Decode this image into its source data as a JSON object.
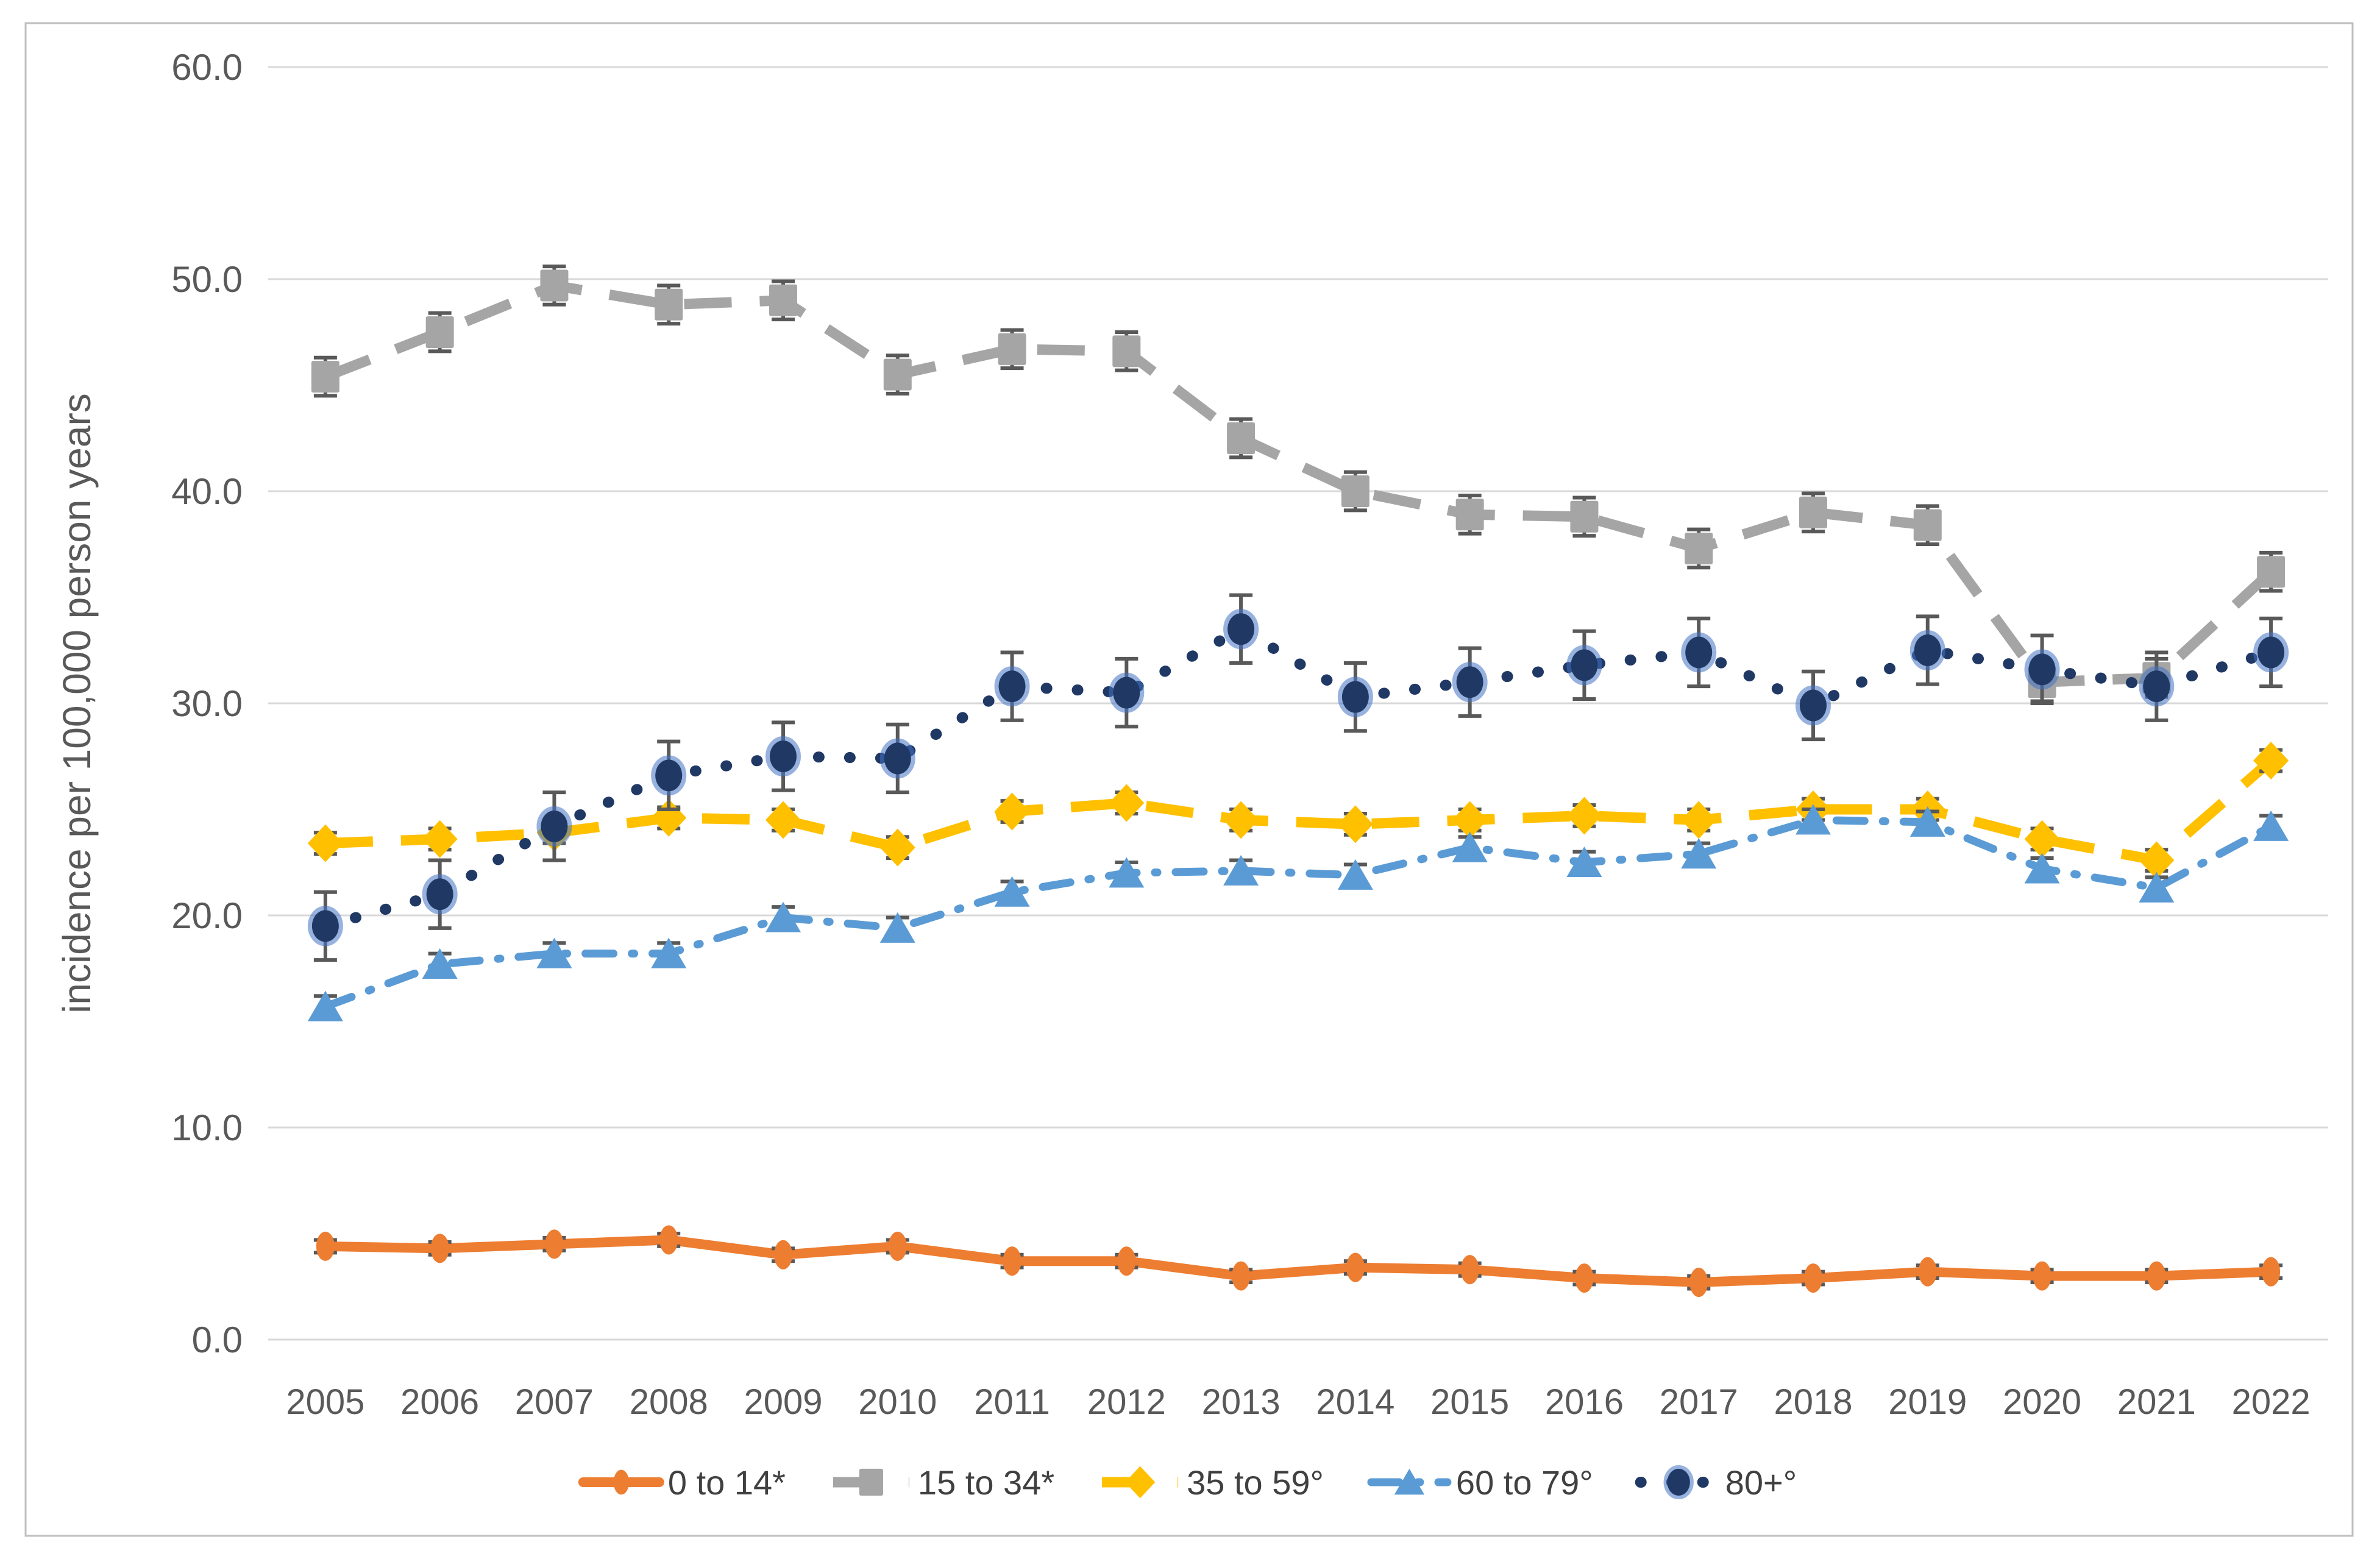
{
  "chart_data": {
    "type": "line",
    "title": "",
    "xlabel": "",
    "ylabel": "incidence per 100,000 person years",
    "ylim": [
      0,
      60
    ],
    "ytick_values": [
      0,
      10,
      20,
      30,
      40,
      50,
      60
    ],
    "ytick_labels": [
      "0.0",
      "10.0",
      "20.0",
      "30.0",
      "40.0",
      "50.0",
      "60.0"
    ],
    "categories": [
      "2005",
      "2006",
      "2007",
      "2008",
      "2009",
      "2010",
      "2011",
      "2012",
      "2013",
      "2014",
      "2015",
      "2016",
      "2017",
      "2018",
      "2019",
      "2020",
      "2021",
      "2022"
    ],
    "grid": "horizontal",
    "legend_position": "bottom",
    "error_bars": true,
    "series": [
      {
        "name": "0 to 14*",
        "color": "#ED7D31",
        "marker": "circle",
        "line_style": "solid",
        "error": 0.3,
        "values": [
          4.4,
          4.3,
          4.5,
          4.7,
          4.0,
          4.4,
          3.7,
          3.7,
          3.0,
          3.4,
          3.3,
          2.9,
          2.7,
          2.9,
          3.2,
          3.0,
          3.0,
          3.2
        ]
      },
      {
        "name": "15 to 34*",
        "color": "#A5A5A5",
        "marker": "square",
        "line_style": "dash",
        "error": 0.9,
        "values": [
          45.4,
          47.5,
          49.7,
          48.8,
          49.0,
          45.5,
          46.7,
          46.6,
          42.5,
          40.0,
          38.9,
          38.8,
          37.3,
          39.0,
          38.4,
          31.0,
          31.2,
          36.2
        ]
      },
      {
        "name": "35 to 59°",
        "color": "#FFC000",
        "marker": "diamond",
        "line_style": "dash",
        "error": 0.5,
        "values": [
          23.4,
          23.6,
          23.9,
          24.6,
          24.5,
          23.2,
          24.9,
          25.3,
          24.5,
          24.3,
          24.5,
          24.7,
          24.5,
          25.0,
          25.0,
          23.6,
          22.6,
          27.3
        ]
      },
      {
        "name": "60 to 79°",
        "color": "#5B9BD5",
        "marker": "triangle",
        "line_style": "dashdot",
        "error": 0.5,
        "values": [
          15.7,
          17.7,
          18.2,
          18.2,
          19.9,
          19.4,
          21.1,
          22.0,
          22.1,
          21.9,
          23.2,
          22.5,
          22.9,
          24.5,
          24.4,
          22.2,
          21.3,
          24.2
        ]
      },
      {
        "name": "80+°",
        "color": "#203864",
        "marker": "circle-halo",
        "line_style": "dot",
        "error": 1.6,
        "values": [
          19.5,
          21.0,
          24.2,
          26.6,
          27.5,
          27.4,
          30.8,
          30.5,
          33.5,
          30.3,
          31.0,
          31.8,
          32.4,
          29.9,
          32.5,
          31.6,
          30.8,
          32.4
        ]
      }
    ]
  },
  "styles": {
    "background": "#FFFFFF",
    "border_color": "#BFBFBF",
    "grid_color": "#D9D9D9",
    "axis_text_color": "#595959",
    "legend_text_color": "#404040",
    "error_bar_color": "#595959",
    "halo_color": "#4472C4"
  }
}
